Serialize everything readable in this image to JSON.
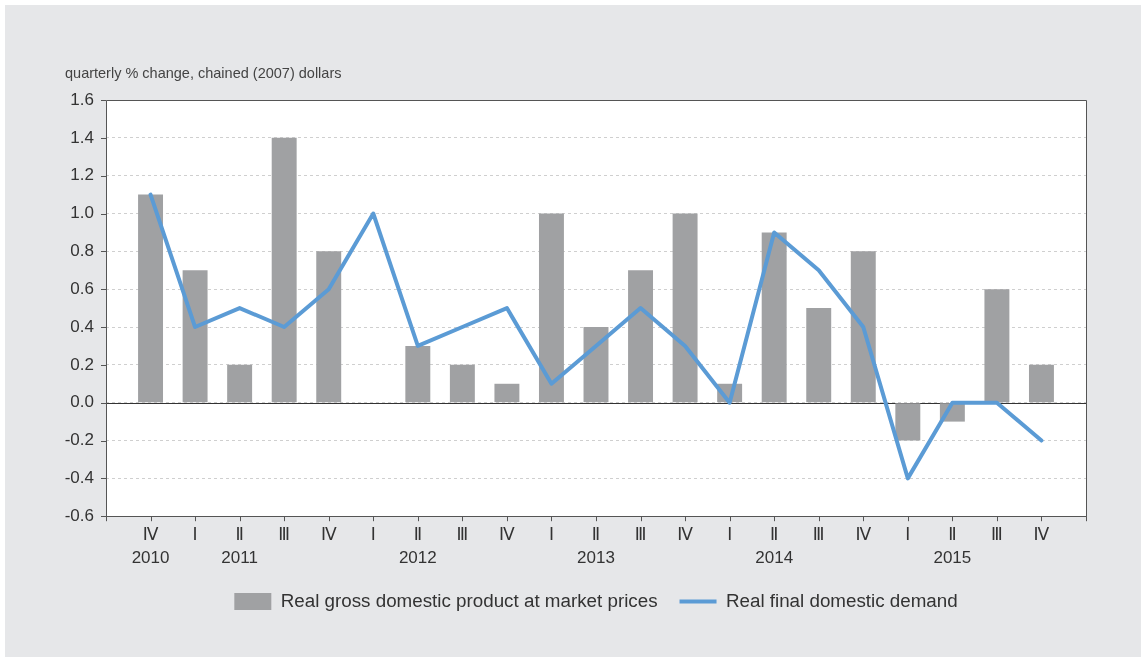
{
  "chart_data": {
    "type": "bar",
    "ylabel": "quarterly % change, chained (2007) dollars",
    "categories": [
      "Ⅳ\n2010",
      "Ⅰ",
      "Ⅱ\n2011",
      "Ⅲ",
      "Ⅳ",
      "Ⅰ",
      "Ⅱ\n2012",
      "Ⅲ",
      "Ⅳ",
      "Ⅰ",
      "Ⅱ\n2013",
      "Ⅲ",
      "Ⅳ",
      "Ⅰ",
      "Ⅱ\n2014",
      "Ⅲ",
      "Ⅳ",
      "Ⅰ",
      "Ⅱ\n2015",
      "Ⅲ",
      "Ⅳ"
    ],
    "series": [
      {
        "name": "Real gross domestic product at market prices",
        "color": "#a0a1a3",
        "values": [
          1.1,
          0.7,
          0.2,
          1.4,
          0.8,
          0,
          0.3,
          0.2,
          0.1,
          1.0,
          0.4,
          0.7,
          1.0,
          0.1,
          0.9,
          0.5,
          0.8,
          -0.2,
          -0.1,
          0.6,
          0.2
        ]
      },
      {
        "name": "Real final domestic demand",
        "type": "line",
        "color": "#5b9bd5",
        "values": [
          1.1,
          0.4,
          0.5,
          0.4,
          0.6,
          1.0,
          0.3,
          0.4,
          0.5,
          0.1,
          0.3,
          0.5,
          0.3,
          0.0,
          0.9,
          0.7,
          0.4,
          -0.4,
          0.0,
          0.0,
          -0.2
        ]
      }
    ],
    "ylim": [
      -0.6,
      1.6
    ],
    "yticks": [
      -0.6,
      -0.4,
      -0.2,
      {
        "value": 0,
        "label": "0.0"
      },
      0.2,
      0.4,
      0.6,
      0.8,
      {
        "value": 1,
        "label": "1.0"
      },
      1.2,
      1.4,
      1.6
    ],
    "grid": "y",
    "legend": "bottom"
  }
}
